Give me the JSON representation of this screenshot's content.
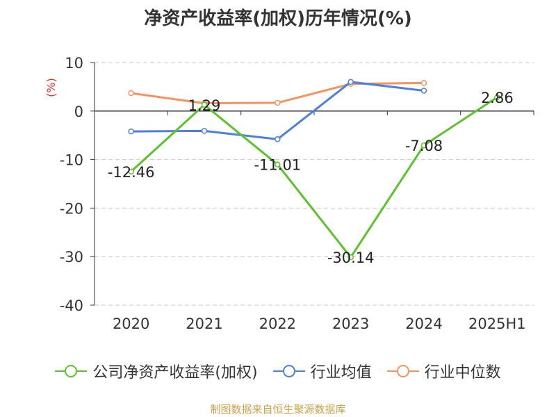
{
  "chart_data": {
    "type": "line",
    "title": "净资产收益率(加权)历年情况(%)",
    "ylabel": "(%)",
    "xlabel": "",
    "categories": [
      "2020",
      "2021",
      "2022",
      "2023",
      "2024",
      "2025H1"
    ],
    "ylim": [
      -40,
      10
    ],
    "yticks": [
      10,
      0,
      -10,
      -20,
      -30,
      -40
    ],
    "grid": true,
    "legend_position": "bottom",
    "series": [
      {
        "name": "公司净资产收益率(加权)",
        "color": "#5cc12d",
        "values": [
          -12.46,
          1.29,
          -11.01,
          -30.14,
          -7.08,
          2.86
        ],
        "labels": [
          "-12.46",
          "1.29",
          "-11.01",
          "-30.14",
          "-7.08",
          "2.86"
        ]
      },
      {
        "name": "行业均值",
        "color": "#4e7fdc",
        "values": [
          -4.2,
          -4.1,
          -5.8,
          6.0,
          4.2,
          null
        ]
      },
      {
        "name": "行业中位数",
        "color": "#f5935f",
        "values": [
          3.7,
          1.6,
          1.7,
          5.6,
          5.8,
          null
        ]
      }
    ]
  },
  "footer": {
    "source": "制图数据来自恒生聚源数据库"
  }
}
